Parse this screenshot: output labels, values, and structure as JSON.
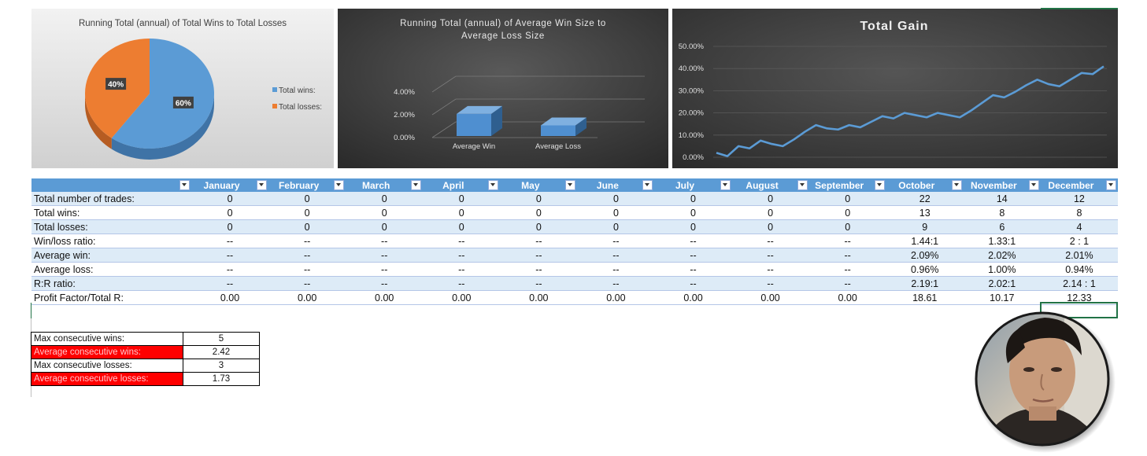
{
  "charts": {
    "wins_losses": {
      "title": "Running Total (annual) of Total Wins to Total Losses",
      "legend": [
        "Total wins:",
        "Total losses:"
      ],
      "labels": [
        "60%",
        "40%"
      ]
    },
    "avg_size": {
      "title_line1": "Running Total (annual) of Average Win Size to",
      "title_line2": "Average Loss Size",
      "ticks": [
        "4.00%",
        "2.00%",
        "0.00%"
      ],
      "categories": [
        "Average Win",
        "Average Loss"
      ]
    },
    "total_gain": {
      "title": "Total Gain",
      "ticks": [
        "50.00%",
        "40.00%",
        "30.00%",
        "20.00%",
        "10.00%",
        "0.00%"
      ]
    }
  },
  "chart_data": [
    {
      "type": "pie",
      "title": "Running Total (annual) of Total Wins to Total Losses",
      "categories": [
        "Total wins:",
        "Total losses:"
      ],
      "values": [
        60,
        40
      ],
      "legend": "right"
    },
    {
      "type": "bar",
      "title": "Running Total (annual) of Average Win Size to Average Loss Size",
      "categories": [
        "Average Win",
        "Average Loss"
      ],
      "values": [
        2.04,
        0.98
      ],
      "ylim": [
        0,
        4
      ],
      "grid": true
    },
    {
      "type": "line",
      "title": "Total Gain",
      "values": [
        2,
        0.5,
        5,
        4,
        7.5,
        6,
        5,
        8,
        11.5,
        14.5,
        13,
        12.5,
        14.5,
        13.5,
        16,
        18.5,
        17.5,
        20,
        19,
        18,
        20,
        19,
        18,
        21,
        24.5,
        28,
        27,
        29.5,
        32.5,
        35,
        33,
        32,
        35,
        38,
        37.5,
        41
      ],
      "ylim": [
        0,
        50
      ],
      "grid": true
    }
  ],
  "table": {
    "months": [
      "January",
      "February",
      "March",
      "April",
      "May",
      "June",
      "July",
      "August",
      "September",
      "October",
      "November",
      "December"
    ],
    "rows": [
      {
        "label": "Total number of trades:",
        "values": [
          "0",
          "0",
          "0",
          "0",
          "0",
          "0",
          "0",
          "0",
          "0",
          "22",
          "14",
          "12"
        ]
      },
      {
        "label": "Total wins:",
        "values": [
          "0",
          "0",
          "0",
          "0",
          "0",
          "0",
          "0",
          "0",
          "0",
          "13",
          "8",
          "8"
        ]
      },
      {
        "label": "Total losses:",
        "values": [
          "0",
          "0",
          "0",
          "0",
          "0",
          "0",
          "0",
          "0",
          "0",
          "9",
          "6",
          "4"
        ]
      },
      {
        "label": "Win/loss ratio:",
        "values": [
          "--",
          "--",
          "--",
          "--",
          "--",
          "--",
          "--",
          "--",
          "--",
          "1.44:1",
          "1.33:1",
          "2 : 1"
        ]
      },
      {
        "label": "Average win:",
        "values": [
          "--",
          "--",
          "--",
          "--",
          "--",
          "--",
          "--",
          "--",
          "--",
          "2.09%",
          "2.02%",
          "2.01%"
        ]
      },
      {
        "label": "Average loss:",
        "values": [
          "--",
          "--",
          "--",
          "--",
          "--",
          "--",
          "--",
          "--",
          "--",
          "0.96%",
          "1.00%",
          "0.94%"
        ]
      },
      {
        "label": "R:R ratio:",
        "values": [
          "--",
          "--",
          "--",
          "--",
          "--",
          "--",
          "--",
          "--",
          "--",
          "2.19:1",
          "2.02:1",
          "2.14 : 1"
        ]
      },
      {
        "label": "Profit Factor/Total R:",
        "values": [
          "0.00",
          "0.00",
          "0.00",
          "0.00",
          "0.00",
          "0.00",
          "0.00",
          "0.00",
          "0.00",
          "18.61",
          "10.17",
          "12.33"
        ]
      }
    ]
  },
  "summary": [
    {
      "label": "Max consecutive wins:",
      "value": "5"
    },
    {
      "label": "Average consecutive wins:",
      "value": "2.42"
    },
    {
      "label": "Max consecutive losses:",
      "value": "3"
    },
    {
      "label": "Average consecutive losses:",
      "value": "1.73"
    }
  ],
  "colors": {
    "blue": "#5b9bd5",
    "orange": "#ed7d31",
    "band": "#ddebf7",
    "red": "#ff0000",
    "dark_panel": "#3a3a3a",
    "excel_green": "#217346"
  },
  "avatar": {
    "description_icon": "avatar-icon"
  }
}
